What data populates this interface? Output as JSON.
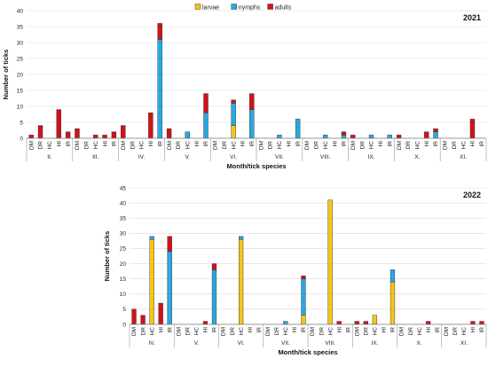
{
  "legend": [
    {
      "name": "larvae",
      "color": "#f5c518"
    },
    {
      "name": "nymphs",
      "color": "#29a8e0"
    },
    {
      "name": "adults",
      "color": "#d0121b"
    }
  ],
  "chart_data": [
    {
      "type": "bar",
      "stacked": true,
      "title": "2021",
      "xlabel": "Month/tick species",
      "ylabel": "Number of ticks",
      "ylim": [
        0,
        40
      ],
      "yticks": [
        0,
        5,
        10,
        15,
        20,
        25,
        30,
        35,
        40
      ],
      "grid": true,
      "species": [
        "DM",
        "DR",
        "HC",
        "HI",
        "IR"
      ],
      "months": [
        "II.",
        "III.",
        "IV.",
        "V.",
        "VI.",
        "VII.",
        "VIII.",
        "IX.",
        "X.",
        "XI."
      ],
      "series": [
        {
          "name": "larvae",
          "values": [
            [
              0,
              0,
              0,
              0,
              0
            ],
            [
              0,
              0,
              0,
              0,
              0
            ],
            [
              0,
              0,
              0,
              0,
              0
            ],
            [
              0,
              0,
              0,
              0,
              0
            ],
            [
              0,
              0,
              4,
              0,
              0
            ],
            [
              0,
              0,
              0,
              0,
              0
            ],
            [
              0,
              0,
              0,
              0,
              0
            ],
            [
              0,
              0,
              0,
              0,
              0
            ],
            [
              0,
              0,
              0,
              0,
              0
            ],
            [
              0,
              0,
              0,
              0,
              0
            ]
          ]
        },
        {
          "name": "nymphs",
          "values": [
            [
              0,
              0,
              0,
              0,
              0
            ],
            [
              0,
              0,
              0,
              0,
              0
            ],
            [
              0,
              0,
              0,
              0,
              31
            ],
            [
              0,
              0,
              2,
              0,
              8
            ],
            [
              0,
              0,
              7,
              0,
              9
            ],
            [
              0,
              0,
              1,
              0,
              6
            ],
            [
              0,
              0,
              1,
              0,
              1
            ],
            [
              0,
              0,
              1,
              0,
              1
            ],
            [
              0,
              0,
              0,
              0,
              2
            ],
            [
              0,
              0,
              0,
              0,
              0
            ]
          ]
        },
        {
          "name": "adults",
          "values": [
            [
              1,
              4,
              0,
              9,
              2
            ],
            [
              3,
              0,
              1,
              1,
              2
            ],
            [
              4,
              0,
              0,
              8,
              5
            ],
            [
              3,
              0,
              0,
              0,
              6
            ],
            [
              0,
              0,
              1,
              0,
              5
            ],
            [
              0,
              0,
              0,
              0,
              0
            ],
            [
              0,
              0,
              0,
              0,
              1
            ],
            [
              1,
              0,
              0,
              0,
              0
            ],
            [
              1,
              0,
              0,
              2,
              1
            ],
            [
              0,
              0,
              0,
              6,
              0
            ]
          ]
        }
      ]
    },
    {
      "type": "bar",
      "stacked": true,
      "title": "2022",
      "xlabel": "Month/tick species",
      "ylabel": "Number of ticks",
      "ylim": [
        0,
        45
      ],
      "yticks": [
        0,
        5,
        10,
        15,
        20,
        25,
        30,
        35,
        40,
        45
      ],
      "grid": true,
      "species": [
        "DM",
        "DR",
        "HC",
        "HI",
        "IR"
      ],
      "months": [
        "IV.",
        "V.",
        "VI.",
        "VII.",
        "VIII.",
        "IX.",
        "X.",
        "XI."
      ],
      "series": [
        {
          "name": "larvae",
          "values": [
            [
              0,
              0,
              28,
              0,
              0
            ],
            [
              0,
              0,
              0,
              0,
              0
            ],
            [
              0,
              0,
              28,
              0,
              0
            ],
            [
              0,
              0,
              0,
              0,
              3
            ],
            [
              0,
              0,
              41,
              0,
              0
            ],
            [
              0,
              0,
              3,
              0,
              14
            ],
            [
              0,
              0,
              0,
              0,
              0
            ],
            [
              0,
              0,
              0,
              0,
              0
            ]
          ]
        },
        {
          "name": "nymphs",
          "values": [
            [
              0,
              0,
              1,
              0,
              24
            ],
            [
              0,
              0,
              0,
              0,
              18
            ],
            [
              0,
              0,
              1,
              0,
              0
            ],
            [
              0,
              0,
              1,
              0,
              12
            ],
            [
              0,
              0,
              0,
              0,
              0
            ],
            [
              0,
              0,
              0,
              0,
              4
            ],
            [
              0,
              0,
              0,
              0,
              0
            ],
            [
              0,
              0,
              0,
              0,
              0
            ]
          ]
        },
        {
          "name": "adults",
          "values": [
            [
              5,
              3,
              0,
              7,
              5
            ],
            [
              0,
              0,
              0,
              1,
              2
            ],
            [
              0,
              0,
              0,
              0,
              0
            ],
            [
              0,
              0,
              0,
              0,
              1
            ],
            [
              0,
              0,
              0,
              1,
              0
            ],
            [
              1,
              1,
              0,
              0,
              0
            ],
            [
              0,
              0,
              0,
              1,
              0
            ],
            [
              0,
              0,
              0,
              1,
              1
            ]
          ]
        }
      ]
    }
  ]
}
